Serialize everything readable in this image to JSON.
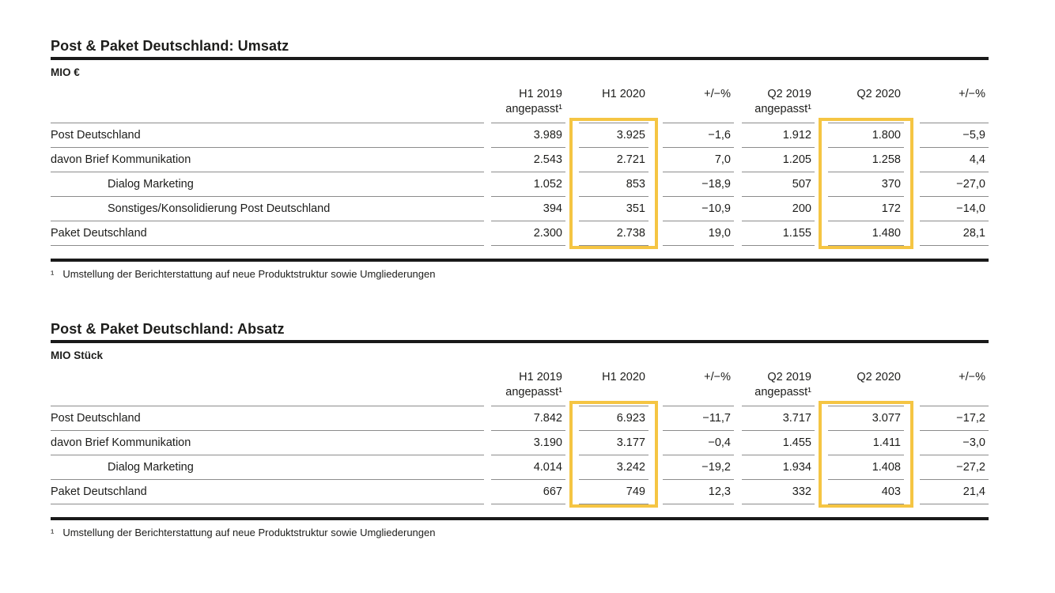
{
  "colors": {
    "highlight_border": "#F5C543",
    "text": "#1d1d1b",
    "row_line": "#8c8c8c",
    "heavy_rule": "#1a1a1a",
    "background": "#ffffff"
  },
  "tables": [
    {
      "title": "Post & Paket Deutschland: Umsatz",
      "unit": "MIO €",
      "column_headers": [
        {
          "line1": "H1 2019",
          "line2": "angepasst¹"
        },
        {
          "line1": "H1 2020",
          "line2": ""
        },
        {
          "line1": "+/−%",
          "line2": ""
        },
        {
          "line1": "Q2 2019",
          "line2": "angepasst¹"
        },
        {
          "line1": "Q2 2020",
          "line2": ""
        },
        {
          "line1": "+/−%",
          "line2": ""
        }
      ],
      "highlighted_columns": [
        1,
        4
      ],
      "rows": [
        {
          "label": "Post Deutschland",
          "indent": false,
          "values": [
            "3.989",
            "3.925",
            "−1,6",
            "1.912",
            "1.800",
            "−5,9"
          ]
        },
        {
          "label": "davon Brief Kommunikation",
          "indent": false,
          "values": [
            "2.543",
            "2.721",
            "7,0",
            "1.205",
            "1.258",
            "4,4"
          ]
        },
        {
          "label": "Dialog Marketing",
          "indent": true,
          "values": [
            "1.052",
            "853",
            "−18,9",
            "507",
            "370",
            "−27,0"
          ]
        },
        {
          "label": "Sonstiges/Konsolidierung Post Deutschland",
          "indent": true,
          "values": [
            "394",
            "351",
            "−10,9",
            "200",
            "172",
            "−14,0"
          ]
        },
        {
          "label": "Paket Deutschland",
          "indent": false,
          "values": [
            "2.300",
            "2.738",
            "19,0",
            "1.155",
            "1.480",
            "28,1"
          ]
        }
      ],
      "footnote_marker": "¹",
      "footnote": "Umstellung der Berichterstattung auf neue Produktstruktur sowie Umgliederungen"
    },
    {
      "title": "Post & Paket Deutschland: Absatz",
      "unit": "MIO Stück",
      "column_headers": [
        {
          "line1": "H1 2019",
          "line2": "angepasst¹"
        },
        {
          "line1": "H1 2020",
          "line2": ""
        },
        {
          "line1": "+/−%",
          "line2": ""
        },
        {
          "line1": "Q2 2019",
          "line2": "angepasst¹"
        },
        {
          "line1": "Q2 2020",
          "line2": ""
        },
        {
          "line1": "+/−%",
          "line2": ""
        }
      ],
      "highlighted_columns": [
        1,
        4
      ],
      "rows": [
        {
          "label": "Post Deutschland",
          "indent": false,
          "values": [
            "7.842",
            "6.923",
            "−11,7",
            "3.717",
            "3.077",
            "−17,2"
          ]
        },
        {
          "label": "davon Brief Kommunikation",
          "indent": false,
          "values": [
            "3.190",
            "3.177",
            "−0,4",
            "1.455",
            "1.411",
            "−3,0"
          ]
        },
        {
          "label": "Dialog Marketing",
          "indent": true,
          "values": [
            "4.014",
            "3.242",
            "−19,2",
            "1.934",
            "1.408",
            "−27,2"
          ]
        },
        {
          "label": "Paket Deutschland",
          "indent": false,
          "values": [
            "667",
            "749",
            "12,3",
            "332",
            "403",
            "21,4"
          ]
        }
      ],
      "footnote_marker": "¹",
      "footnote": "Umstellung der Berichterstattung auf neue Produktstruktur sowie Umgliederungen"
    }
  ]
}
